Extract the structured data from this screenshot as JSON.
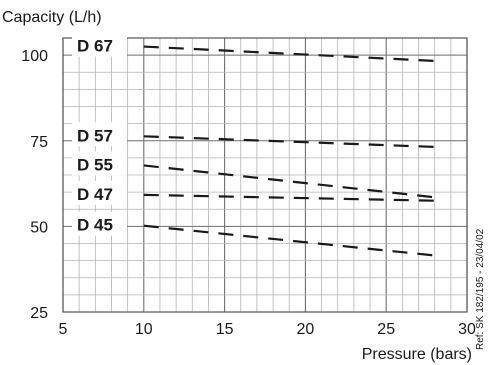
{
  "chart_data": {
    "type": "line",
    "title": "",
    "xlabel": "Pressure (bars)",
    "ylabel": "Capacity (L/h)",
    "xlim": [
      5,
      30
    ],
    "ylim": [
      25,
      105
    ],
    "x_ticks": [
      5,
      10,
      15,
      20,
      25,
      30
    ],
    "y_ticks": [
      25,
      50,
      75,
      100
    ],
    "grid": true,
    "line_style": "dashed",
    "line_color": "#1a1a1a",
    "series": [
      {
        "name": "D 67",
        "x": [
          10,
          28
        ],
        "y": [
          102.5,
          98.3
        ]
      },
      {
        "name": "D 57",
        "x": [
          10,
          28
        ],
        "y": [
          76.3,
          73.2
        ]
      },
      {
        "name": "D 55",
        "x": [
          10,
          28
        ],
        "y": [
          67.8,
          58.5
        ]
      },
      {
        "name": "D 47",
        "x": [
          10,
          28
        ],
        "y": [
          59.2,
          57.5
        ]
      },
      {
        "name": "D 45",
        "x": [
          10,
          28
        ],
        "y": [
          50.2,
          41.5
        ]
      }
    ],
    "annotation": "Ref: SK 182/195 - 23/04/02"
  }
}
